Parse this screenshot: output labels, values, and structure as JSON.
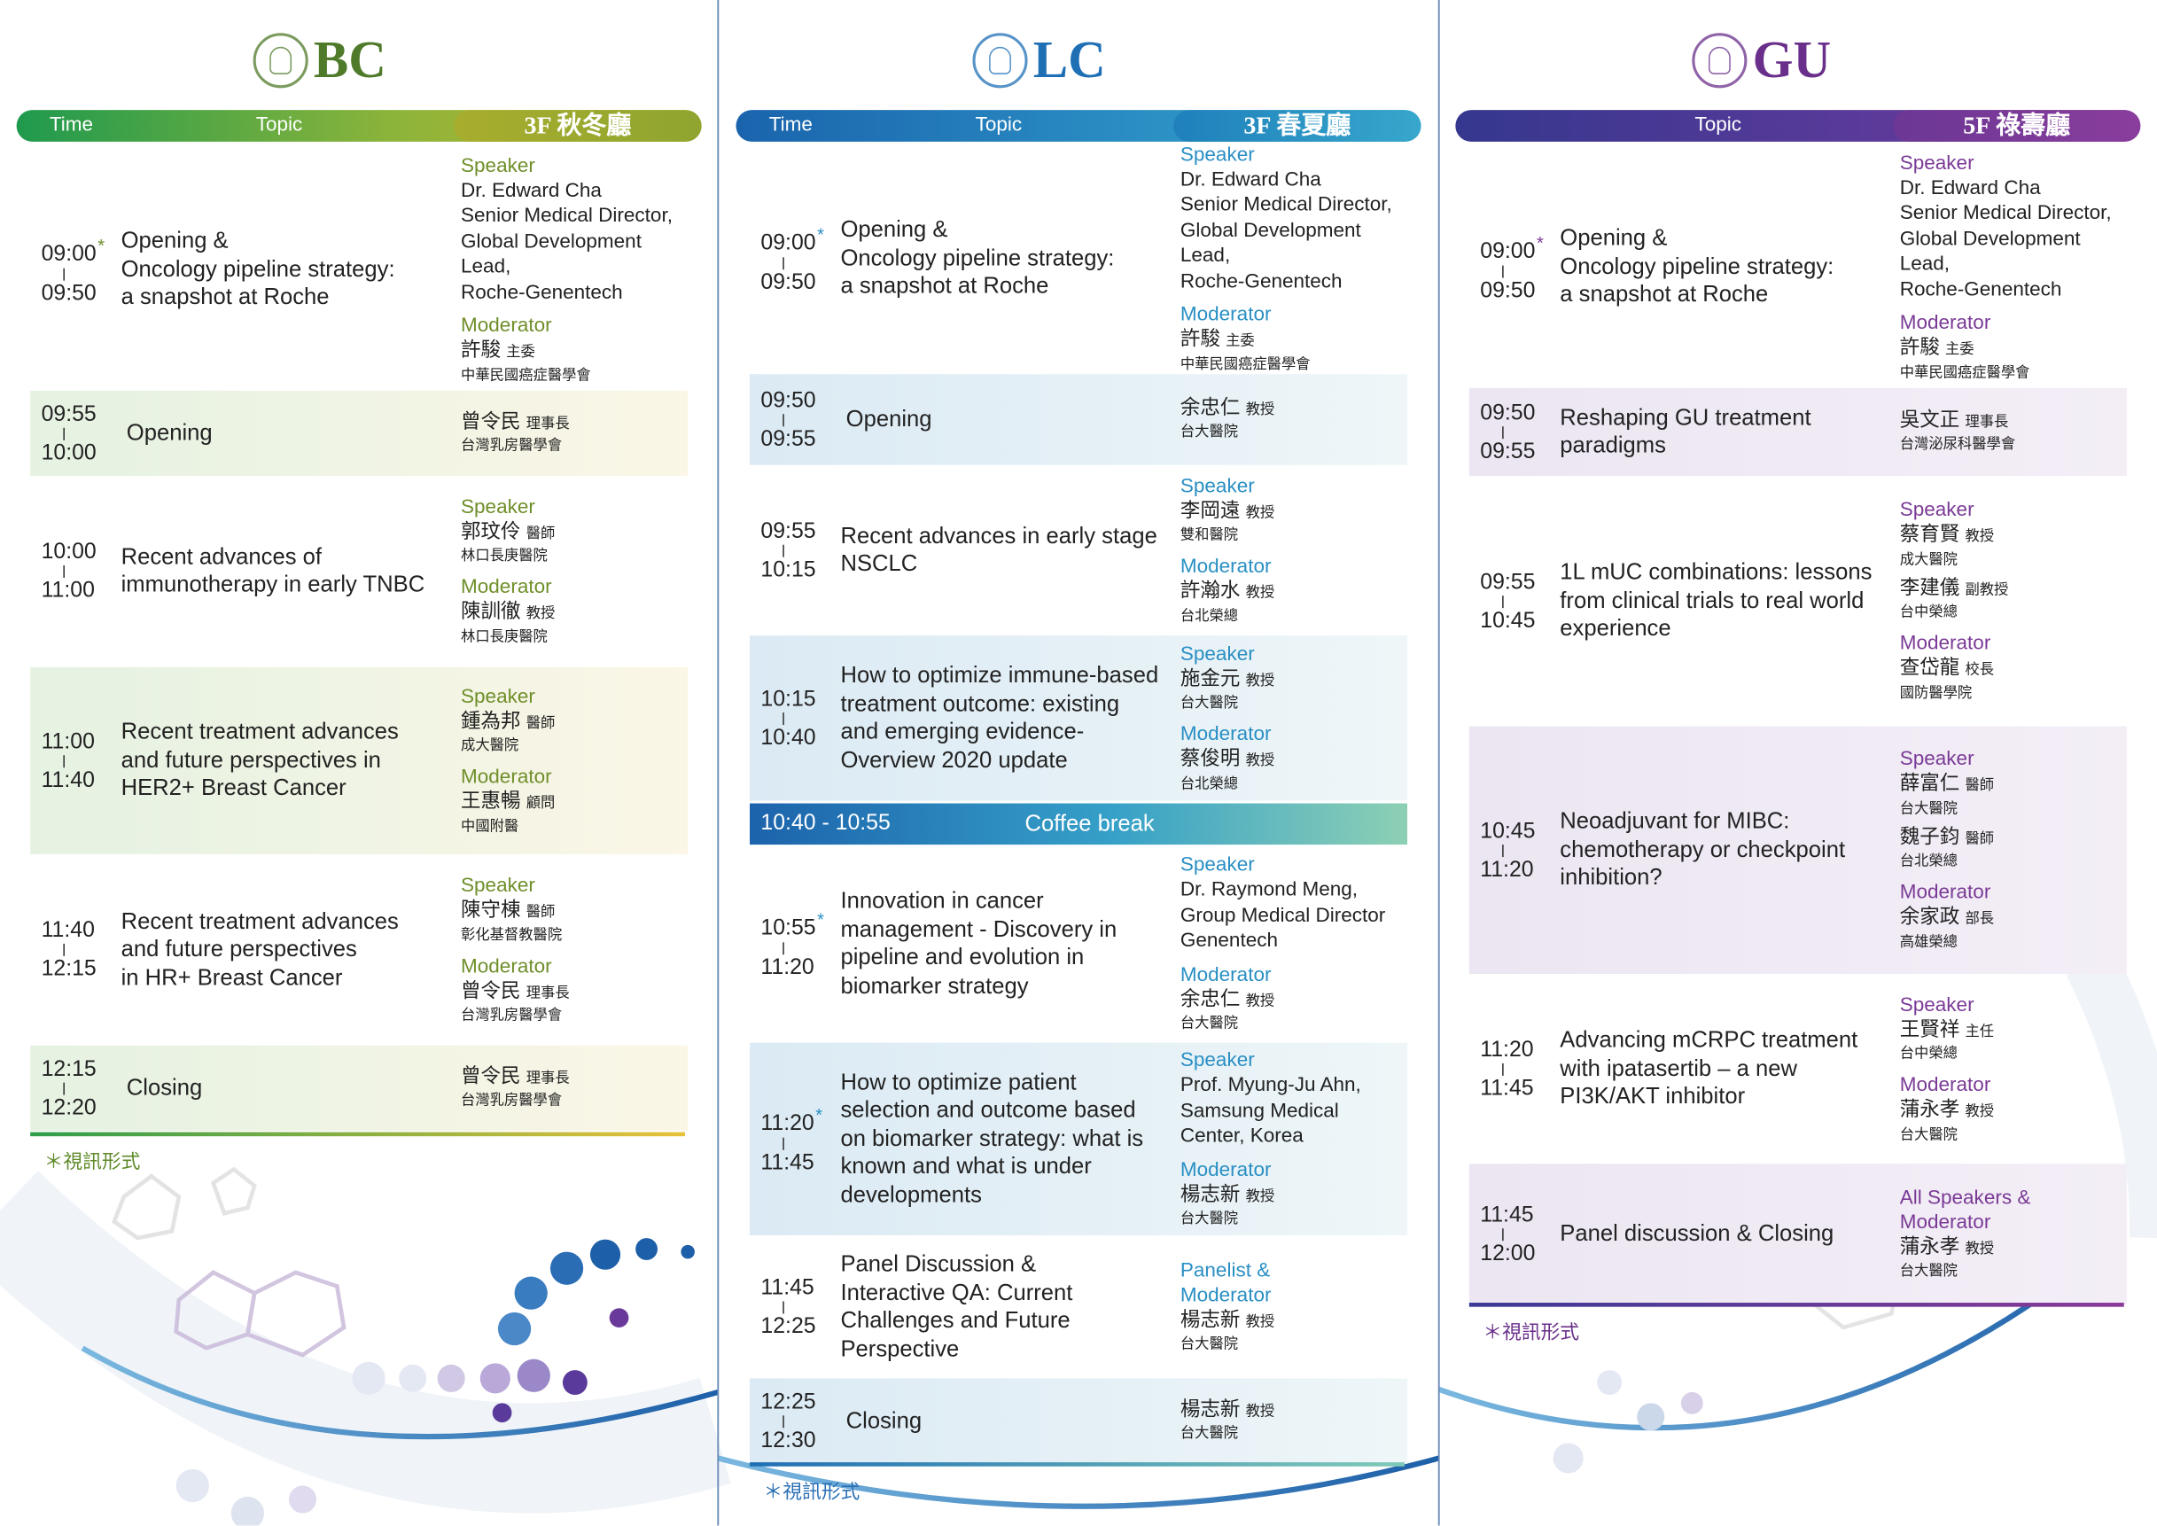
{
  "columns": [
    {
      "title": "BC",
      "header": {
        "time": "Time",
        "topic": "Topic",
        "room": "3F 秋冬廳"
      },
      "sessions": [
        {
          "start": "09:00",
          "mark": "*",
          "end": "09:50",
          "topic": "Opening &\nOncology pipeline strategy:\na snapshot at Roche",
          "roles": [
            {
              "label": "Speaker",
              "people": [
                {
                  "name": "Dr. Edward Cha\nSenior Medical Director,\nGlobal Development Lead,\nRoche-Genentech"
                }
              ]
            },
            {
              "label": "Moderator",
              "people": [
                {
                  "name": "許駿",
                  "title": "主委",
                  "org": "中華民國癌症醫學會"
                }
              ]
            }
          ]
        },
        {
          "start": "09:55",
          "end": "10:00",
          "topic": "Opening",
          "roles": [
            {
              "people": [
                {
                  "name": "曾令民",
                  "title": "理事長",
                  "org": "台灣乳房醫學會"
                }
              ]
            }
          ]
        },
        {
          "start": "10:00",
          "end": "11:00",
          "topic": "Recent advances of\nimmunotherapy in early TNBC",
          "roles": [
            {
              "label": "Speaker",
              "people": [
                {
                  "name": "郭玟伶",
                  "title": "醫師",
                  "org": "林口長庚醫院"
                }
              ]
            },
            {
              "label": "Moderator",
              "people": [
                {
                  "name": "陳訓徹",
                  "title": "教授",
                  "org": "林口長庚醫院"
                }
              ]
            }
          ]
        },
        {
          "start": "11:00",
          "end": "11:40",
          "topic": "Recent treatment advances\nand future perspectives in\nHER2+ Breast Cancer",
          "roles": [
            {
              "label": "Speaker",
              "people": [
                {
                  "name": "鍾為邦",
                  "title": "醫師",
                  "org": "成大醫院"
                }
              ]
            },
            {
              "label": "Moderator",
              "people": [
                {
                  "name": "王惠暢",
                  "title": "顧問",
                  "org": "中國附醫"
                }
              ]
            }
          ]
        },
        {
          "start": "11:40",
          "end": "12:15",
          "topic": "Recent treatment advances\nand future perspectives\nin HR+ Breast Cancer",
          "roles": [
            {
              "label": "Speaker",
              "people": [
                {
                  "name": "陳守棟",
                  "title": "醫師",
                  "org": "彰化基督教醫院"
                }
              ]
            },
            {
              "label": "Moderator",
              "people": [
                {
                  "name": "曾令民",
                  "title": "理事長",
                  "org": "台灣乳房醫學會"
                }
              ]
            }
          ]
        },
        {
          "start": "12:15",
          "end": "12:20",
          "topic": "Closing",
          "roles": [
            {
              "people": [
                {
                  "name": "曾令民",
                  "title": "理事長",
                  "org": "台灣乳房醫學會"
                }
              ]
            }
          ]
        }
      ],
      "footnote": "＊視訊形式"
    },
    {
      "title": "LC",
      "header": {
        "time": "Time",
        "topic": "Topic",
        "room": "3F 春夏廳"
      },
      "sessions": [
        {
          "start": "09:00",
          "mark": "*",
          "end": "09:50",
          "topic": "Opening &\nOncology pipeline strategy:\na snapshot at Roche",
          "roles": [
            {
              "label": "Speaker",
              "people": [
                {
                  "name": "Dr. Edward Cha\nSenior Medical Director,\nGlobal Development Lead,\nRoche-Genentech"
                }
              ]
            },
            {
              "label": "Moderator",
              "people": [
                {
                  "name": "許駿",
                  "title": "主委",
                  "org": "中華民國癌症醫學會"
                }
              ]
            }
          ]
        },
        {
          "start": "09:50",
          "end": "09:55",
          "topic": "Opening",
          "roles": [
            {
              "people": [
                {
                  "name": "余忠仁",
                  "title": "教授",
                  "org": "台大醫院"
                }
              ]
            }
          ]
        },
        {
          "start": "09:55",
          "end": "10:15",
          "topic": "Recent advances in early stage\nNSCLC",
          "roles": [
            {
              "label": "Speaker",
              "people": [
                {
                  "name": "李岡遠",
                  "title": "教授",
                  "org": "雙和醫院"
                }
              ]
            },
            {
              "label": "Moderator",
              "people": [
                {
                  "name": "許瀚水",
                  "title": "教授",
                  "org": "台北榮總"
                }
              ]
            }
          ]
        },
        {
          "start": "10:15",
          "end": "10:40",
          "topic": "How to optimize immune-based\ntreatment outcome: existing\nand emerging evidence-\nOverview 2020 update",
          "roles": [
            {
              "label": "Speaker",
              "people": [
                {
                  "name": "施金元",
                  "title": "教授",
                  "org": "台大醫院"
                }
              ]
            },
            {
              "label": "Moderator",
              "people": [
                {
                  "name": "蔡俊明",
                  "title": "教授",
                  "org": "台北榮總"
                }
              ]
            }
          ]
        },
        {
          "range": "10:40 - 10:55",
          "topic": "Coffee break"
        },
        {
          "start": "10:55",
          "mark": "*",
          "end": "11:20",
          "topic": "Innovation in cancer\nmanagement - Discovery in\npipeline and evolution in\nbiomarker strategy",
          "roles": [
            {
              "label": "Speaker",
              "people": [
                {
                  "name": "Dr. Raymond Meng,\nGroup Medical Director\nGenentech"
                }
              ]
            },
            {
              "label": "Moderator",
              "people": [
                {
                  "name": "余忠仁",
                  "title": "教授",
                  "org": "台大醫院"
                }
              ]
            }
          ]
        },
        {
          "start": "11:20",
          "mark": "*",
          "end": "11:45",
          "topic": "How to optimize patient\nselection and outcome based\non biomarker strategy: what is\nknown and what is under\ndevelopments",
          "roles": [
            {
              "label": "Speaker",
              "people": [
                {
                  "name": "Prof. Myung-Ju Ahn,\nSamsung Medical\nCenter, Korea"
                }
              ]
            },
            {
              "label": "Moderator",
              "people": [
                {
                  "name": "楊志新",
                  "title": "教授",
                  "org": "台大醫院"
                }
              ]
            }
          ]
        },
        {
          "start": "11:45",
          "end": "12:25",
          "topic": "Panel Discussion &\nInteractive QA: Current\nChallenges and Future\nPerspective",
          "roles": [
            {
              "label": "Panelist &\nModerator",
              "people": [
                {
                  "name": "楊志新",
                  "title": "教授",
                  "org": "台大醫院"
                }
              ]
            }
          ]
        },
        {
          "start": "12:25",
          "end": "12:30",
          "topic": "Closing",
          "roles": [
            {
              "people": [
                {
                  "name": "楊志新",
                  "title": "教授",
                  "org": "台大醫院"
                }
              ]
            }
          ]
        }
      ],
      "footnote": "＊視訊形式"
    },
    {
      "title": "GU",
      "header": {
        "topic": "Topic",
        "room": "5F 祿壽廳"
      },
      "sessions": [
        {
          "start": "09:00",
          "mark": "*",
          "end": "09:50",
          "topic": "Opening &\nOncology pipeline strategy:\na snapshot at Roche",
          "roles": [
            {
              "label": "Speaker",
              "people": [
                {
                  "name": "Dr. Edward Cha\nSenior Medical Director,\nGlobal Development Lead,\nRoche-Genentech"
                }
              ]
            },
            {
              "label": "Moderator",
              "people": [
                {
                  "name": "許駿",
                  "title": "主委",
                  "org": "中華民國癌症醫學會"
                }
              ]
            }
          ]
        },
        {
          "start": "09:50",
          "end": "09:55",
          "topic": "Reshaping GU treatment\nparadigms",
          "roles": [
            {
              "people": [
                {
                  "name": "吳文正",
                  "title": "理事長",
                  "org": "台灣泌尿科醫學會"
                }
              ]
            }
          ]
        },
        {
          "start": "09:55",
          "end": "10:45",
          "topic": "1L mUC combinations: lessons\nfrom clinical trials to real world\nexperience",
          "roles": [
            {
              "label": "Speaker",
              "people": [
                {
                  "name": "蔡育賢",
                  "title": "教授",
                  "org": "成大醫院"
                },
                {
                  "name": "李建儀",
                  "title": "副教授",
                  "org": "台中榮總"
                }
              ]
            },
            {
              "label": "Moderator",
              "people": [
                {
                  "name": "查岱龍",
                  "title": "校長",
                  "org": "國防醫學院"
                }
              ]
            }
          ]
        },
        {
          "start": "10:45",
          "end": "11:20",
          "topic": "Neoadjuvant for MIBC:\nchemotherapy or checkpoint\ninhibition?",
          "roles": [
            {
              "label": "Speaker",
              "people": [
                {
                  "name": "薛富仁",
                  "title": "醫師",
                  "org": "台大醫院"
                },
                {
                  "name": "魏子鈞",
                  "title": "醫師",
                  "org": "台北榮總"
                }
              ]
            },
            {
              "label": "Moderator",
              "people": [
                {
                  "name": "余家政",
                  "title": "部長",
                  "org": "高雄榮總"
                }
              ]
            }
          ]
        },
        {
          "start": "11:20",
          "end": "11:45",
          "topic": "Advancing mCRPC treatment\nwith ipatasertib – a new\nPI3K/AKT inhibitor",
          "roles": [
            {
              "label": "Speaker",
              "people": [
                {
                  "name": "王賢祥",
                  "title": "主任",
                  "org": "台中榮總"
                }
              ]
            },
            {
              "label": "Moderator",
              "people": [
                {
                  "name": "蒲永孝",
                  "title": "教授",
                  "org": "台大醫院"
                }
              ]
            }
          ]
        },
        {
          "start": "11:45",
          "end": "12:00",
          "topic": "Panel discussion & Closing",
          "roles": [
            {
              "label": "All Speakers &\nModerator",
              "people": [
                {
                  "name": "蒲永孝",
                  "title": "教授",
                  "org": "台大醫院"
                }
              ]
            }
          ]
        }
      ],
      "footnote": "＊視訊形式"
    }
  ]
}
